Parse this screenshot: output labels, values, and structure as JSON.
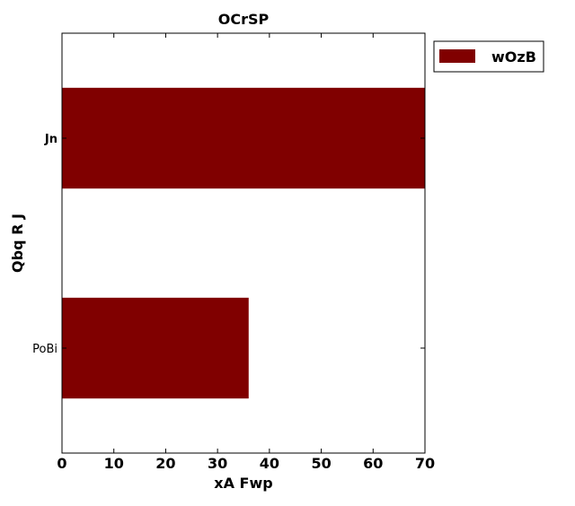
{
  "chart_data": {
    "type": "bar",
    "orientation": "horizontal",
    "title": "OCrSP",
    "xlabel": "xA Fwp",
    "ylabel": "Qbq R J",
    "categories": [
      "PoBi",
      "Jn"
    ],
    "series": [
      {
        "name": "wOzB",
        "values": [
          36,
          70
        ],
        "color": "#800000"
      }
    ],
    "xlim": [
      0,
      70
    ],
    "xticks": [
      0,
      10,
      20,
      30,
      40,
      50,
      60,
      70
    ],
    "grid": false,
    "legend": "top-right, outside plot"
  }
}
